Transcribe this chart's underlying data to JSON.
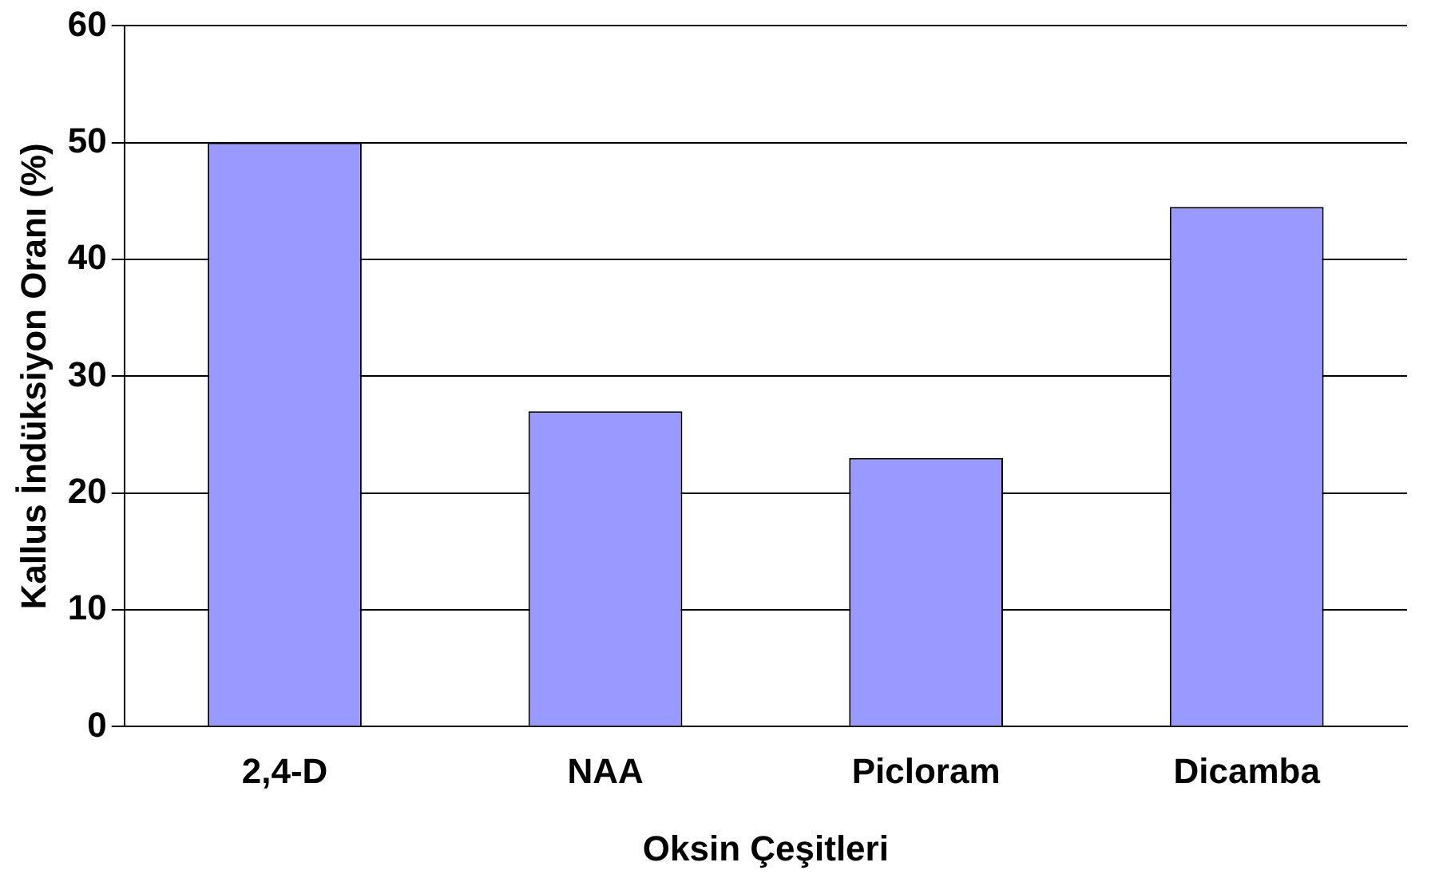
{
  "chart_data": {
    "type": "bar",
    "xlabel": "Oksin Çeşitleri",
    "ylabel": "Kallus İndüksiyon Oranı (%)",
    "categories": [
      "2,4-D",
      "NAA",
      "Picloram",
      "Dicamba"
    ],
    "values": [
      50,
      27,
      23,
      44.5
    ],
    "color": "#9999ff",
    "ylim": [
      0,
      60
    ],
    "yticks": [
      0,
      10,
      20,
      30,
      40,
      50,
      60
    ],
    "grid": "y"
  }
}
